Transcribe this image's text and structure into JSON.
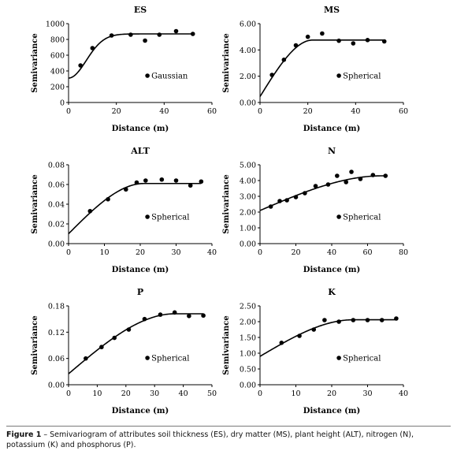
{
  "caption": {
    "label": "Figure 1",
    "text": " – Semivariogram of attributes soil thickness (ES), dry matter (MS), plant height (ALT), nitrogen (N), potassium (K) and phosphorus (P)."
  },
  "chart_data": [
    {
      "type": "scatter",
      "title": "ES",
      "xlabel": "Distance (m)",
      "ylabel": "Semivariance",
      "xlim": [
        0,
        60
      ],
      "ylim": [
        0,
        1000
      ],
      "xticks": [
        "0",
        "20",
        "40",
        "60"
      ],
      "yticks": [
        "0",
        "200",
        "400",
        "600",
        "800",
        "1000"
      ],
      "legend": "Gaussian",
      "model": {
        "kind": "gaussian",
        "nugget": 310,
        "sill": 870,
        "range": 18
      },
      "points": [
        [
          5,
          470
        ],
        [
          10,
          690
        ],
        [
          18,
          850
        ],
        [
          26,
          860
        ],
        [
          32,
          785
        ],
        [
          38,
          860
        ],
        [
          45,
          905
        ],
        [
          52,
          870
        ]
      ]
    },
    {
      "type": "scatter",
      "title": "MS",
      "xlabel": "Distance (m)",
      "ylabel": "Semivariance",
      "xlim": [
        0,
        60
      ],
      "ylim": [
        0,
        6
      ],
      "xticks": [
        "0",
        "20",
        "40",
        "60"
      ],
      "yticks": [
        "0.00",
        "2.00",
        "4.00",
        "6.00"
      ],
      "legend": "Spherical",
      "model": {
        "kind": "spherical",
        "nugget": 0.45,
        "sill": 4.75,
        "range": 22
      },
      "points": [
        [
          5,
          2.1
        ],
        [
          10,
          3.25
        ],
        [
          15,
          4.35
        ],
        [
          20,
          5.0
        ],
        [
          26,
          5.25
        ],
        [
          33,
          4.7
        ],
        [
          39,
          4.5
        ],
        [
          45,
          4.75
        ],
        [
          52,
          4.65
        ]
      ]
    },
    {
      "type": "scatter",
      "title": "ALT",
      "xlabel": "Distance (m)",
      "ylabel": "Semivariance",
      "xlim": [
        0,
        40
      ],
      "ylim": [
        0,
        0.08
      ],
      "xticks": [
        "0",
        "10",
        "20",
        "30",
        "40"
      ],
      "yticks": [
        "0.00",
        "0.02",
        "0.04",
        "0.06",
        "0.08"
      ],
      "legend": "Spherical",
      "model": {
        "kind": "spherical",
        "nugget": 0.01,
        "sill": 0.061,
        "range": 21
      },
      "points": [
        [
          6,
          0.033
        ],
        [
          11,
          0.045
        ],
        [
          16,
          0.055
        ],
        [
          19,
          0.062
        ],
        [
          21.5,
          0.064
        ],
        [
          26,
          0.065
        ],
        [
          30,
          0.064
        ],
        [
          34,
          0.059
        ],
        [
          37,
          0.063
        ]
      ]
    },
    {
      "type": "scatter",
      "title": "N",
      "xlabel": "Distance (m)",
      "ylabel": "Semivariance",
      "xlim": [
        0,
        80
      ],
      "ylim": [
        0,
        5
      ],
      "xticks": [
        "0",
        "20",
        "40",
        "60",
        "80"
      ],
      "yticks": [
        "0.00",
        "1.00",
        "2.00",
        "3.00",
        "4.00",
        "5.00"
      ],
      "legend": "Spherical",
      "model": {
        "kind": "spherical",
        "nugget": 2.1,
        "sill": 4.3,
        "range": 68
      },
      "points": [
        [
          6,
          2.35
        ],
        [
          11,
          2.7
        ],
        [
          15,
          2.75
        ],
        [
          20,
          2.95
        ],
        [
          25,
          3.2
        ],
        [
          31,
          3.65
        ],
        [
          38,
          3.75
        ],
        [
          43,
          4.3
        ],
        [
          48,
          3.9
        ],
        [
          51,
          4.55
        ],
        [
          56,
          4.1
        ],
        [
          63,
          4.35
        ],
        [
          70,
          4.3
        ]
      ]
    },
    {
      "type": "scatter",
      "title": "P",
      "xlabel": "Distance (m)",
      "ylabel": "Semivariance",
      "xlim": [
        0,
        50
      ],
      "ylim": [
        0,
        0.18
      ],
      "xticks": [
        "0",
        "10",
        "20",
        "30",
        "40",
        "50"
      ],
      "yticks": [
        "0.00",
        "0.06",
        "0.12",
        "0.18"
      ],
      "legend": "Spherical",
      "model": {
        "kind": "spherical",
        "nugget": 0.025,
        "sill": 0.162,
        "range": 37
      },
      "points": [
        [
          6,
          0.06
        ],
        [
          11.5,
          0.086
        ],
        [
          16,
          0.107
        ],
        [
          21,
          0.126
        ],
        [
          26.5,
          0.15
        ],
        [
          32,
          0.16
        ],
        [
          37,
          0.165
        ],
        [
          42,
          0.157
        ],
        [
          47,
          0.158
        ]
      ]
    },
    {
      "type": "scatter",
      "title": "K",
      "xlabel": "Distance (m)",
      "ylabel": "Semivariance",
      "xlim": [
        0,
        40
      ],
      "ylim": [
        0,
        2.5
      ],
      "xticks": [
        "0",
        "10",
        "20",
        "30",
        "40"
      ],
      "yticks": [
        "0.00",
        "0.50",
        "1.00",
        "1.50",
        "2.00",
        "2.50"
      ],
      "legend": "Spherical",
      "model": {
        "kind": "spherical",
        "nugget": 0.9,
        "sill": 2.06,
        "range": 26
      },
      "points": [
        [
          6,
          1.33
        ],
        [
          11,
          1.55
        ],
        [
          15,
          1.75
        ],
        [
          18,
          2.05
        ],
        [
          22,
          2.0
        ],
        [
          26,
          2.05
        ],
        [
          30,
          2.05
        ],
        [
          34,
          2.05
        ],
        [
          38,
          2.1
        ]
      ]
    }
  ]
}
